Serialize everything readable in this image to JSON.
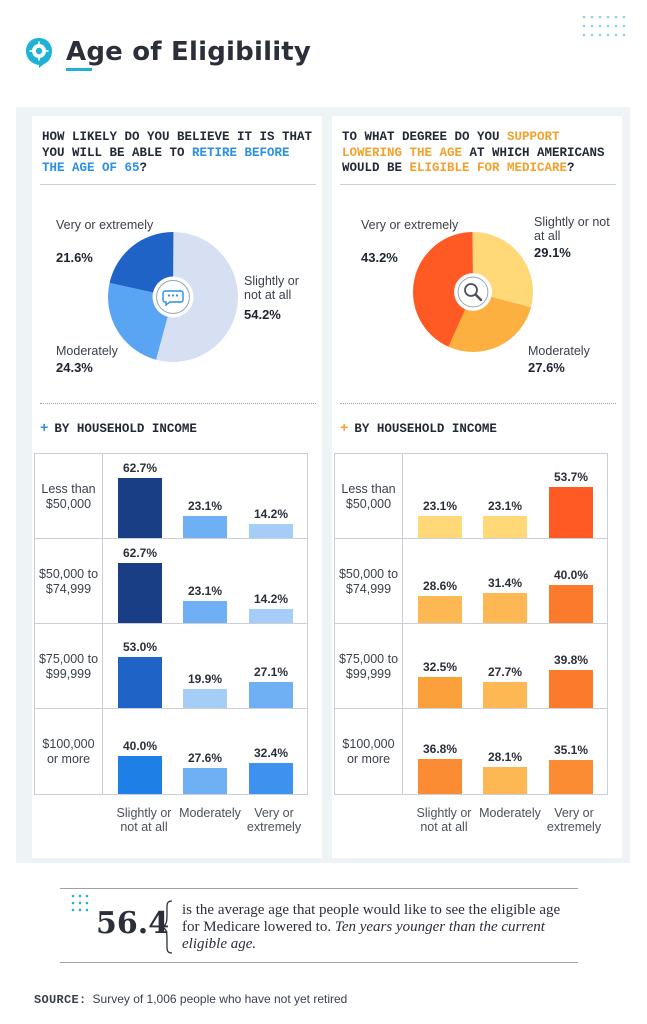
{
  "title": "Age of Eligibility",
  "colors": {
    "accent": "#20b2d6",
    "blue_dark": "#1a3e86",
    "blue_mid": "#1f63c7",
    "blue_light": "#5aa5f3",
    "blue_pale": "#d7e0f2",
    "orange_deep": "#ff5a24",
    "orange_mid": "#fbb040",
    "orange_light": "#ffd878"
  },
  "left": {
    "question_pre": "HOW LIKELY DO YOU BELIEVE IT IS THAT YOU WILL BE ABLE TO ",
    "question_hl": "RETIRE BEFORE THE AGE OF 65",
    "question_post": "?",
    "center_icon": "chat-bubble-icon",
    "pie": [
      {
        "label": "Very or extremely",
        "value": "21.6%"
      },
      {
        "label": "Moderately",
        "value": "24.3%"
      },
      {
        "label": "Slightly or not at all",
        "value": "54.2%"
      }
    ],
    "by_income": "BY HOUSEHOLD INCOME",
    "columns": [
      "Slightly or not at all",
      "Moderately",
      "Very or extremely"
    ],
    "rows": [
      {
        "label": "Less than $50,000",
        "values": [
          "62.7%",
          "23.1%",
          "14.2%"
        ]
      },
      {
        "label": "$50,000 to $74,999",
        "values": [
          "62.7%",
          "23.1%",
          "14.2%"
        ]
      },
      {
        "label": "$75,000 to $99,999",
        "values": [
          "53.0%",
          "19.9%",
          "27.1%"
        ]
      },
      {
        "label": "$100,000 or more",
        "values": [
          "40.0%",
          "27.6%",
          "32.4%"
        ]
      }
    ]
  },
  "right": {
    "question_pre": "TO WHAT DEGREE DO YOU ",
    "question_hl1": "SUPPORT LOWERING THE AGE",
    "question_mid": " AT WHICH AMERICANS WOULD BE ",
    "question_hl2": "ELIGIBLE FOR MEDICARE",
    "question_post": "?",
    "center_icon": "magnifier-icon",
    "pie": [
      {
        "label": "Very or extremely",
        "value": "43.2%"
      },
      {
        "label": "Slightly or not at all",
        "value": "29.1%"
      },
      {
        "label": "Moderately",
        "value": "27.6%"
      }
    ],
    "by_income": "BY HOUSEHOLD INCOME",
    "columns": [
      "Slightly or not at all",
      "Moderately",
      "Very or extremely"
    ],
    "rows": [
      {
        "label": "Less than $50,000",
        "values": [
          "23.1%",
          "23.1%",
          "53.7%"
        ]
      },
      {
        "label": "$50,000 to $74,999",
        "values": [
          "28.6%",
          "31.4%",
          "40.0%"
        ]
      },
      {
        "label": "$75,000 to $99,999",
        "values": [
          "32.5%",
          "27.7%",
          "39.8%"
        ]
      },
      {
        "label": "$100,000 or more",
        "values": [
          "36.8%",
          "28.1%",
          "35.1%"
        ]
      }
    ]
  },
  "stat": {
    "number": "56.4",
    "text": "is the average age that people would like to see the eligible age for Medicare lowered to.",
    "italic": "Ten years younger than the current eligible age."
  },
  "source": {
    "label": "SOURCE:",
    "text": "Survey of 1,006 people who have not yet retired"
  },
  "chart_data": [
    {
      "type": "pie",
      "title": "HOW LIKELY DO YOU BELIEVE IT IS THAT YOU WILL BE ABLE TO RETIRE BEFORE THE AGE OF 65?",
      "categories": [
        "Very or extremely",
        "Moderately",
        "Slightly or not at all"
      ],
      "values": [
        21.6,
        24.3,
        54.2
      ]
    },
    {
      "type": "bar",
      "title": "BY HOUSEHOLD INCOME",
      "categories": [
        "Less than $50,000",
        "$50,000 to $74,999",
        "$75,000 to $99,999",
        "$100,000 or more"
      ],
      "series": [
        {
          "name": "Slightly or not at all",
          "values": [
            62.7,
            62.7,
            53.0,
            40.0
          ]
        },
        {
          "name": "Moderately",
          "values": [
            23.1,
            23.1,
            19.9,
            27.6
          ]
        },
        {
          "name": "Very or extremely",
          "values": [
            14.2,
            14.2,
            27.1,
            32.4
          ]
        }
      ]
    },
    {
      "type": "pie",
      "title": "TO WHAT DEGREE DO YOU SUPPORT LOWERING THE AGE AT WHICH AMERICANS WOULD BE ELIGIBLE FOR MEDICARE?",
      "categories": [
        "Very or extremely",
        "Slightly or not at all",
        "Moderately"
      ],
      "values": [
        43.2,
        29.1,
        27.6
      ]
    },
    {
      "type": "bar",
      "title": "BY HOUSEHOLD INCOME",
      "categories": [
        "Less than $50,000",
        "$50,000 to $74,999",
        "$75,000 to $99,999",
        "$100,000 or more"
      ],
      "series": [
        {
          "name": "Slightly or not at all",
          "values": [
            23.1,
            28.6,
            32.5,
            36.8
          ]
        },
        {
          "name": "Moderately",
          "values": [
            23.1,
            31.4,
            27.7,
            28.1
          ]
        },
        {
          "name": "Very or extremely",
          "values": [
            53.7,
            40.0,
            39.8,
            35.1
          ]
        }
      ]
    }
  ]
}
